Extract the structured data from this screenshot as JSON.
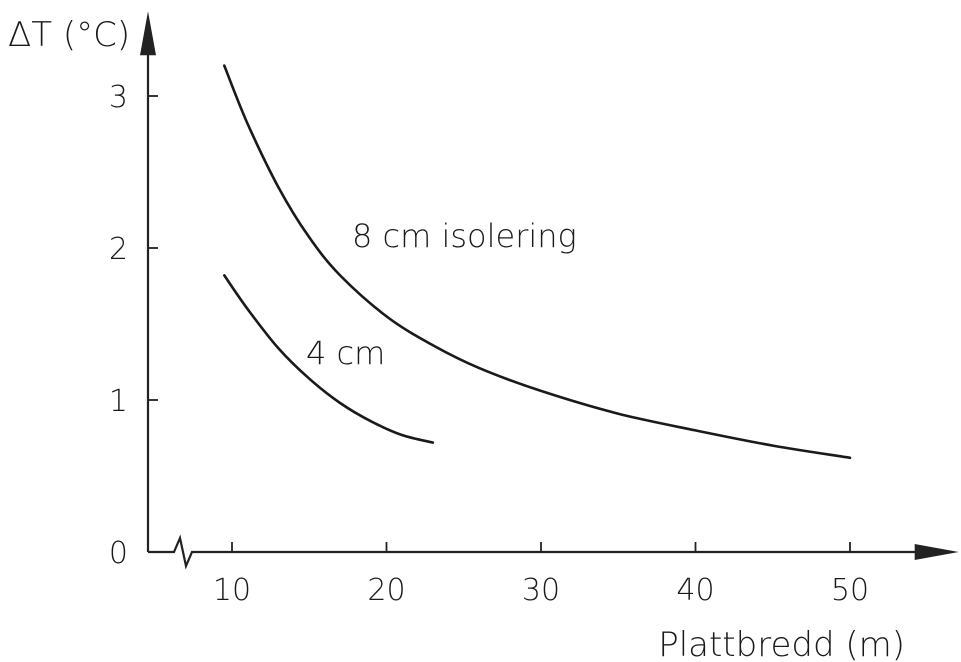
{
  "chart_data": {
    "type": "line",
    "ylabel": "ΔT (°C)",
    "xlabel": "Plattbredd  (m)",
    "xlim": [
      7,
      56
    ],
    "ylim": [
      0,
      3.4
    ],
    "x_ticks": [
      10,
      20,
      30,
      40,
      50
    ],
    "y_ticks": [
      0,
      1,
      2,
      3
    ],
    "x_axis_break": true,
    "grid": false,
    "series": [
      {
        "name": "8 cm isolering",
        "x": [
          9.5,
          11,
          13,
          15,
          17,
          20,
          23,
          26,
          30,
          35,
          40,
          45,
          50
        ],
        "y": [
          3.2,
          2.82,
          2.4,
          2.07,
          1.82,
          1.55,
          1.36,
          1.21,
          1.06,
          0.91,
          0.8,
          0.7,
          0.62
        ]
      },
      {
        "name": "4 cm",
        "x": [
          9.5,
          11,
          13,
          15,
          17,
          19,
          21,
          23
        ],
        "y": [
          1.82,
          1.6,
          1.34,
          1.14,
          0.98,
          0.86,
          0.77,
          0.72
        ]
      }
    ]
  }
}
